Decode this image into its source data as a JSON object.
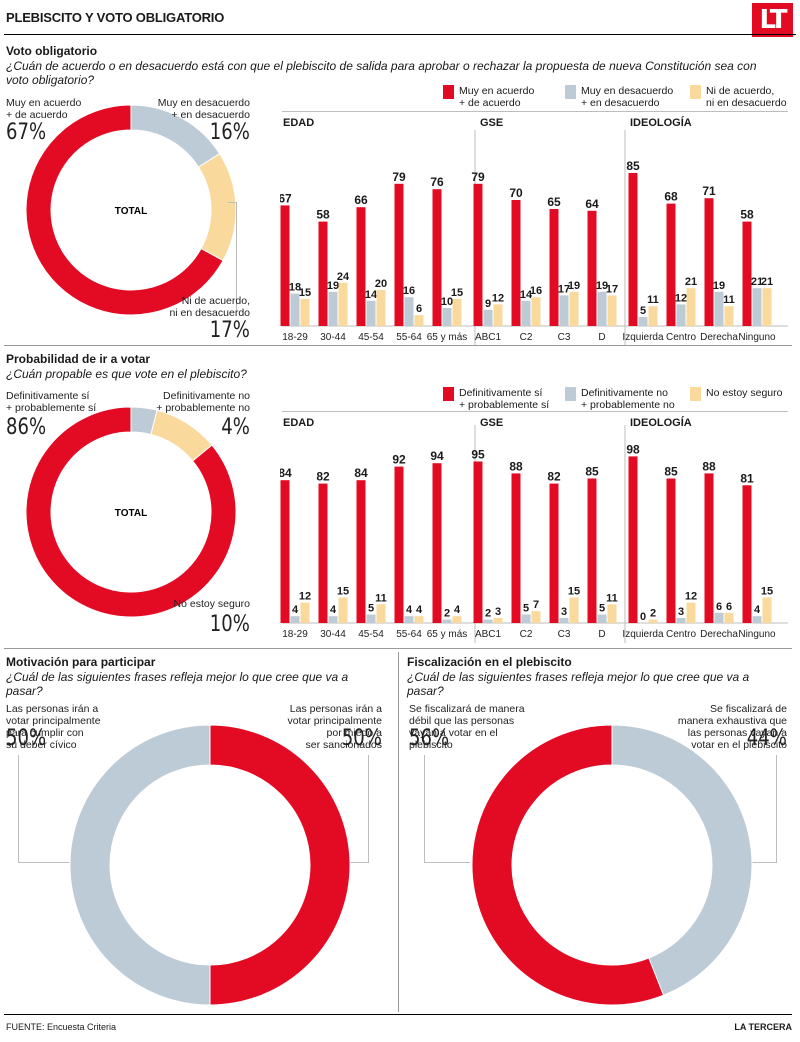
{
  "header": {
    "title": "PLEBISCITO Y VOTO OBLIGATORIO",
    "logo": "LT"
  },
  "colors": {
    "red": "#e30b24",
    "gray": "#bccbd6",
    "yellow": "#fad99c"
  },
  "section1": {
    "title": "Voto obligatorio",
    "question": "¿Cuán de acuerdo o en desacuerdo está con que el plebiscito de salida para aprobar o rechazar la propuesta de nueva Constitución sea con voto obligatorio?",
    "total_label": "TOTAL",
    "donut_labels": [
      {
        "label": "Muy en acuerdo\n+ de acuerdo",
        "pct": "67%"
      },
      {
        "label": "Muy en desacuerdo\n+ en desacuerdo",
        "pct": "16%"
      },
      {
        "label": "Ni de acuerdo,\nni en desacuerdo",
        "pct": "17%"
      }
    ],
    "legend": [
      "Muy en acuerdo\n+ de acuerdo",
      "Muy en desacuerdo\n+ en desacuerdo",
      "Ni de acuerdo,\nni en desacuerdo"
    ],
    "groups": [
      "EDAD",
      "GSE",
      "IDEOLOGÍA"
    ]
  },
  "section2": {
    "title": "Probabilidad de ir a votar",
    "question": "¿Cuán propable es que vote en el plebiscito?",
    "total_label": "TOTAL",
    "donut_labels": [
      {
        "label": "Definitivamente sí\n+ probablemente sí",
        "pct": "86%"
      },
      {
        "label": "Definitivamente no\n+ probablemente no",
        "pct": "4%"
      },
      {
        "label": "No estoy seguro",
        "pct": "10%"
      }
    ],
    "legend": [
      "Definitivamente sí\n+ probablemente sí",
      "Definitivamente no\n+ probablemente no",
      "No estoy seguro"
    ],
    "groups": [
      "EDAD",
      "GSE",
      "IDEOLOGÍA"
    ]
  },
  "section3": {
    "title": "Motivación para participar",
    "question": "¿Cuál de las siguientes frases refleja mejor lo que cree que va a pasar?",
    "left": {
      "label": "Las personas irán a\nvotar principalmente\npara cumplir con\nsu deber cívico",
      "pct": "50%"
    },
    "right": {
      "label": "Las personas irán a\nvotar principalmente\npor miedo a\nser sancionados",
      "pct": "50%"
    }
  },
  "section4": {
    "title": "Fiscalización en el plebiscito",
    "question": "¿Cuál de las siguientes frases refleja mejor lo que cree que va a pasar?",
    "left": {
      "label": "Se fiscalizará de manera\ndébil que las personas\nvayan a votar en el\nplebiscito",
      "pct": "56%"
    },
    "right": {
      "label": "Se fiscalizará de\nmanera exhaustiva que\nlas personas vayan a\nvotar en el plebiscito",
      "pct": "44%"
    }
  },
  "footer": {
    "source": "FUENTE: Encuesta Criteria",
    "brand": "LA TERCERA"
  },
  "chart_data": [
    {
      "type": "pie",
      "title": "Voto obligatorio - TOTAL",
      "labels": [
        "Muy en acuerdo + de acuerdo",
        "Muy en desacuerdo + en desacuerdo",
        "Ni de acuerdo, ni en desacuerdo"
      ],
      "values": [
        67,
        16,
        17
      ]
    },
    {
      "type": "bar",
      "title": "Voto obligatorio por segmento",
      "categories": [
        "18-29",
        "30-44",
        "45-54",
        "55-64",
        "65 y más",
        "ABC1",
        "C2",
        "C3",
        "D",
        "Izquierda",
        "Centro",
        "Derecha",
        "Ninguno"
      ],
      "series": [
        {
          "name": "Muy en acuerdo + de acuerdo",
          "values": [
            67,
            58,
            66,
            79,
            76,
            79,
            70,
            65,
            64,
            85,
            68,
            71,
            58
          ]
        },
        {
          "name": "Muy en desacuerdo + en desacuerdo",
          "values": [
            18,
            19,
            14,
            16,
            10,
            9,
            14,
            17,
            19,
            5,
            12,
            19,
            21
          ]
        },
        {
          "name": "Ni de acuerdo, ni en desacuerdo",
          "values": [
            15,
            24,
            20,
            6,
            15,
            12,
            16,
            19,
            17,
            11,
            21,
            11,
            21
          ]
        }
      ],
      "ylim": [
        0,
        100
      ]
    },
    {
      "type": "pie",
      "title": "Probabilidad de ir a votar - TOTAL",
      "labels": [
        "Definitivamente sí + probablemente sí",
        "Definitivamente no + probablemente no",
        "No estoy seguro"
      ],
      "values": [
        86,
        4,
        10
      ]
    },
    {
      "type": "bar",
      "title": "Probabilidad de ir a votar por segmento",
      "categories": [
        "18-29",
        "30-44",
        "45-54",
        "55-64",
        "65 y más",
        "ABC1",
        "C2",
        "C3",
        "D",
        "Izquierda",
        "Centro",
        "Derecha",
        "Ninguno"
      ],
      "series": [
        {
          "name": "Definitivamente sí + probablemente sí",
          "values": [
            84,
            82,
            84,
            92,
            94,
            95,
            88,
            82,
            85,
            98,
            85,
            88,
            81
          ]
        },
        {
          "name": "Definitivamente no + probablemente no",
          "values": [
            4,
            4,
            5,
            4,
            2,
            2,
            5,
            3,
            5,
            0,
            3,
            6,
            4
          ]
        },
        {
          "name": "No estoy seguro",
          "values": [
            12,
            15,
            11,
            4,
            4,
            3,
            7,
            15,
            11,
            2,
            12,
            6,
            15
          ]
        }
      ],
      "ylim": [
        0,
        100
      ]
    },
    {
      "type": "pie",
      "title": "Motivación para participar",
      "labels": [
        "Las personas irán a votar principalmente por miedo a ser sancionados",
        "Las personas irán a votar principalmente para cumplir con su deber cívico"
      ],
      "values": [
        50,
        50
      ]
    },
    {
      "type": "pie",
      "title": "Fiscalización en el plebiscito",
      "labels": [
        "Se fiscalizará de manera exhaustiva que las personas vayan a votar en el plebiscito",
        "Se fiscalizará de manera débil que las personas vayan a votar en el plebiscito"
      ],
      "values": [
        44,
        56
      ]
    }
  ]
}
